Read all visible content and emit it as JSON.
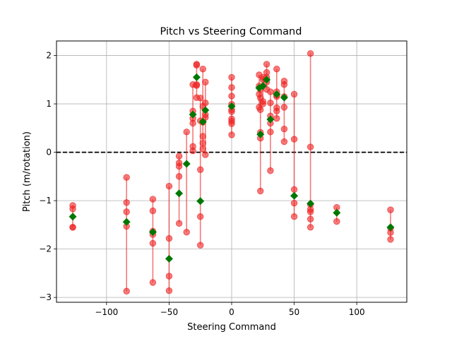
{
  "chart_data": {
    "type": "scatter",
    "title": "Pitch vs Steering Command",
    "xlabel": "Steering Command",
    "ylabel": "Pitch (m/rotation)",
    "xlim": [
      -140,
      140
    ],
    "ylim": [
      -3.1,
      2.3
    ],
    "xticks": [
      -100,
      -50,
      0,
      50,
      100
    ],
    "yticks": [
      -3,
      -2,
      -1,
      0,
      1,
      2
    ],
    "grid": true,
    "reference_line": {
      "y": 0,
      "style": "dashed",
      "color": "#000000"
    },
    "colors": {
      "samples": "#ee2222",
      "means": "#007700",
      "ranges": "#ee2222"
    },
    "groups": [
      {
        "x": -127,
        "samples": [
          -1.1,
          -1.17,
          -1.55,
          -1.55
        ],
        "mean": -1.33
      },
      {
        "x": -84,
        "samples": [
          -0.52,
          -1.04,
          -1.23,
          -1.53,
          -2.87
        ],
        "mean": -1.44
      },
      {
        "x": -63,
        "samples": [
          -0.97,
          -1.21,
          -1.63,
          -1.7,
          -1.88,
          -2.69
        ],
        "mean": -1.65
      },
      {
        "x": -50,
        "samples": [
          -0.7,
          -1.78,
          -2.56,
          -2.86
        ],
        "mean": -2.2
      },
      {
        "x": -42,
        "samples": [
          -0.08,
          -0.22,
          -0.29,
          -0.5,
          -1.47
        ],
        "mean": -0.85
      },
      {
        "x": -36,
        "samples": [
          0.42,
          -1.65
        ],
        "mean": -0.24
      },
      {
        "x": -31,
        "samples": [
          1.4,
          0.85,
          0.7,
          0.6,
          0.12,
          0.03
        ],
        "mean": 0.78
      },
      {
        "x": -28,
        "samples": [
          1.82,
          1.8,
          1.4,
          1.38,
          1.13
        ],
        "mean": 1.55
      },
      {
        "x": -25,
        "samples": [
          1.12,
          0.65,
          -0.36,
          -1.33,
          -1.92
        ],
        "mean": -1.01
      },
      {
        "x": -23,
        "samples": [
          1.72,
          0.95,
          0.62,
          0.33,
          0.19,
          0.07
        ],
        "mean": 0.63
      },
      {
        "x": -21,
        "samples": [
          1.45,
          1.02,
          0.78,
          0.72,
          -0.05
        ],
        "mean": 0.87
      },
      {
        "x": 0,
        "samples": [
          1.55,
          1.34,
          1.16,
          0.99,
          0.88,
          0.84,
          0.69,
          0.64,
          0.59,
          0.36
        ],
        "mean": 0.95
      },
      {
        "x": 22,
        "samples": [
          1.6,
          1.37,
          1.2,
          0.93
        ],
        "mean": 1.33
      },
      {
        "x": 23,
        "samples": [
          1.3,
          1.12,
          0.88,
          0.41,
          0.29,
          -0.8
        ],
        "mean": 0.37
      },
      {
        "x": 25,
        "samples": [
          1.55,
          1.5,
          1.05,
          1.0
        ],
        "mean": 1.37
      },
      {
        "x": 28,
        "samples": [
          1.82,
          1.65,
          1.55,
          1.45,
          1.3
        ],
        "mean": 1.5
      },
      {
        "x": 31,
        "samples": [
          1.25,
          1.02,
          0.75,
          0.6,
          0.42,
          -0.38
        ],
        "mean": 0.68
      },
      {
        "x": 36,
        "samples": [
          1.72,
          1.25,
          1.18,
          1.15,
          0.92,
          0.85,
          0.7
        ],
        "mean": 1.2
      },
      {
        "x": 42,
        "samples": [
          1.47,
          1.4,
          1.15,
          0.93,
          0.48,
          0.22
        ],
        "mean": 1.13
      },
      {
        "x": 50,
        "samples": [
          1.2,
          0.27,
          -0.77,
          -1.05,
          -1.33
        ],
        "mean": -0.9
      },
      {
        "x": 63,
        "samples": [
          2.04,
          0.11,
          -1.08,
          -1.18,
          -1.23,
          -1.38,
          -1.55
        ],
        "mean": -1.06
      },
      {
        "x": 84,
        "samples": [
          -1.14,
          -1.43
        ],
        "mean": -1.25
      },
      {
        "x": 127,
        "samples": [
          -1.19,
          -1.57,
          -1.66,
          -1.8
        ],
        "mean": -1.55
      }
    ]
  }
}
